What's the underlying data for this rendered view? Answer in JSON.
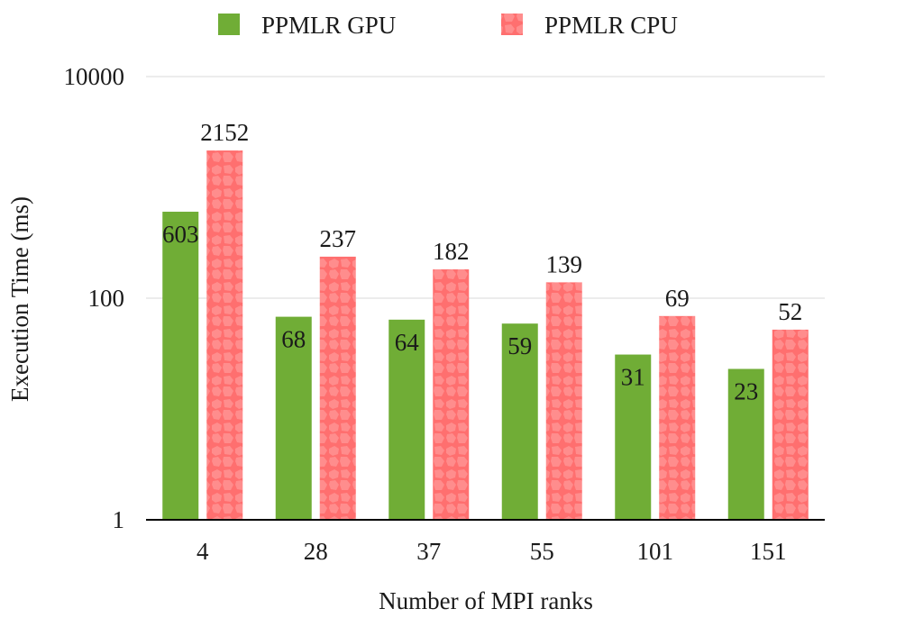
{
  "chart_data": {
    "type": "bar",
    "title": "",
    "xlabel": "Number of MPI ranks",
    "ylabel": "Execution Time (ms)",
    "yscale": "log",
    "ylim": [
      1,
      10000
    ],
    "yticks": [
      1,
      100,
      10000
    ],
    "ytick_labels": [
      "1",
      "100",
      "10000"
    ],
    "grid": true,
    "legend_position": "top",
    "categories": [
      "4",
      "28",
      "37",
      "55",
      "101",
      "151"
    ],
    "series": [
      {
        "name": "PPMLR GPU",
        "color": "#70ad36",
        "pattern": "solid",
        "values": [
          603,
          68,
          64,
          59,
          31,
          23
        ],
        "labels": [
          "603",
          "68",
          "64",
          "59",
          "31",
          "23"
        ]
      },
      {
        "name": "PPMLR CPU",
        "color": "#ff7b7b",
        "pattern": "cells",
        "values": [
          2152,
          237,
          182,
          139,
          69,
          52
        ],
        "labels": [
          "2152",
          "237",
          "182",
          "139",
          "69",
          "52"
        ]
      }
    ]
  }
}
